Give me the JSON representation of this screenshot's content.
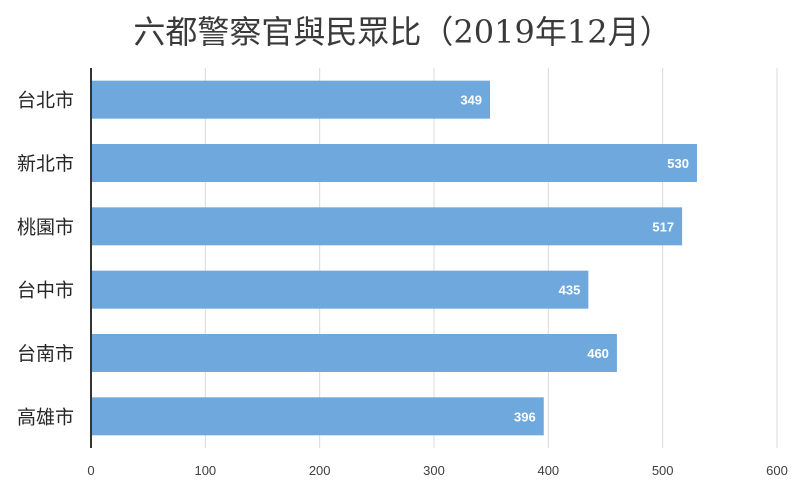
{
  "chart_data": {
    "type": "bar",
    "orientation": "horizontal",
    "title": "六都警察官與民眾比（2019年12月）",
    "categories": [
      "台北市",
      "新北市",
      "桃園市",
      "台中市",
      "台南市",
      "高雄市"
    ],
    "values": [
      349,
      530,
      517,
      435,
      460,
      396
    ],
    "xlim": [
      0,
      600
    ],
    "xticks": [
      0,
      100,
      200,
      300,
      400,
      500,
      600
    ],
    "xlabel": "",
    "ylabel": "",
    "grid": true,
    "data_labels": true,
    "bar_color": "#6fa8dc"
  }
}
